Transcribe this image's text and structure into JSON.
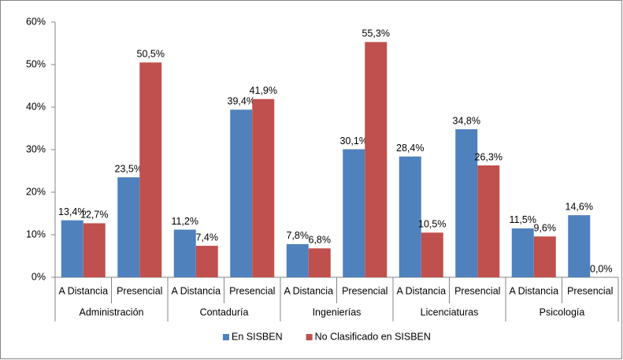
{
  "chart_data": {
    "type": "bar",
    "categories": [
      "A Distancia",
      "Presencial",
      "A Distancia",
      "Presencial",
      "A Distancia",
      "Presencial",
      "A Distancia",
      "Presencial",
      "A Distancia",
      "Presencial"
    ],
    "category_groups": [
      "Administración",
      "Contaduría",
      "Ingenierías",
      "Licenciaturas",
      "Psicología"
    ],
    "series": [
      {
        "name": "En SISBEN",
        "color": "#4f81bd",
        "values": [
          13.4,
          23.5,
          11.2,
          39.4,
          7.8,
          30.1,
          28.4,
          34.8,
          11.5,
          14.6
        ],
        "value_labels": [
          "13,4%",
          "23,5%",
          "11,2%",
          "39,4%",
          "7,8%",
          "30,1%",
          "28,4%",
          "34,8%",
          "11,5%",
          "14,6%"
        ]
      },
      {
        "name": "No Clasificado en SISBEN",
        "color": "#c0504d",
        "values": [
          12.7,
          50.5,
          7.4,
          41.9,
          6.8,
          55.3,
          10.5,
          26.3,
          9.6,
          0.0
        ],
        "value_labels": [
          "12,7%",
          "50,5%",
          "7,4%",
          "41,9%",
          "6,8%",
          "55,3%",
          "10,5%",
          "26,3%",
          "9,6%",
          "0,0%"
        ]
      }
    ],
    "ylim": [
      0,
      60
    ],
    "yticks": [
      {
        "value": 0,
        "label": "0%"
      },
      {
        "value": 10,
        "label": "10%"
      },
      {
        "value": 20,
        "label": "20%"
      },
      {
        "value": 30,
        "label": "30%"
      },
      {
        "value": 40,
        "label": "40%"
      },
      {
        "value": 50,
        "label": "50%"
      },
      {
        "value": 60,
        "label": "60%"
      }
    ],
    "grid": false,
    "legend": "bottom"
  }
}
